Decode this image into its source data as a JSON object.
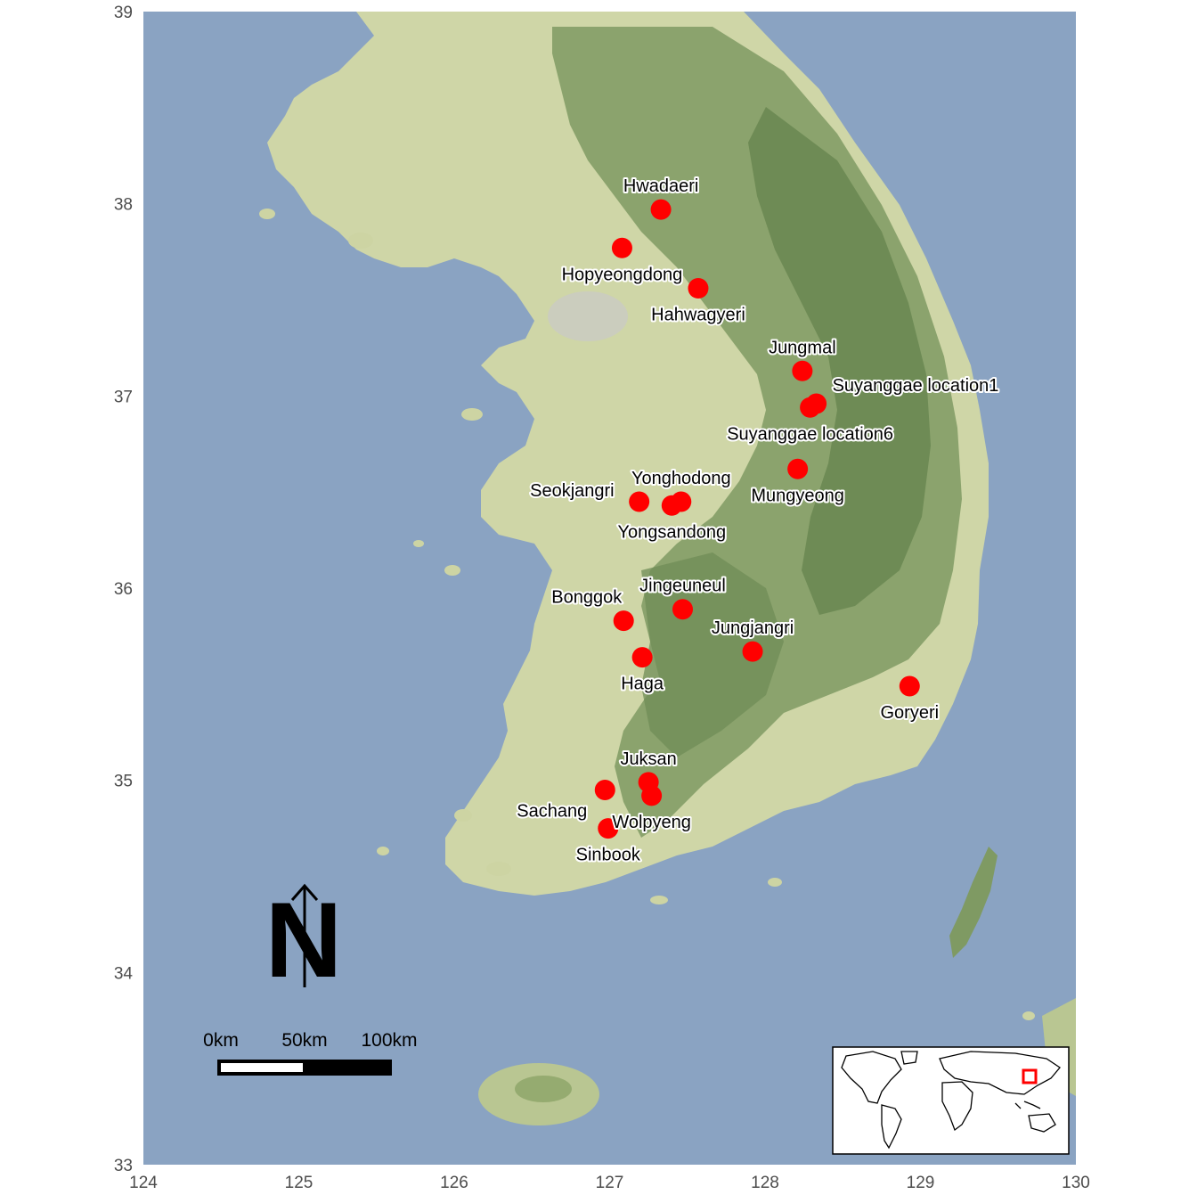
{
  "map": {
    "type": "scatter",
    "xlim": [
      124,
      130
    ],
    "ylim": [
      33,
      39
    ],
    "x_ticks": [
      "124",
      "125",
      "126",
      "127",
      "128",
      "129",
      "130"
    ],
    "y_ticks": [
      "33",
      "34",
      "35",
      "36",
      "37",
      "38",
      "39"
    ],
    "basemap": "terrain map of the Korean peninsula",
    "point_color": "#ff0000",
    "sea_color": "#8aa3c2",
    "land_color": "#cfd6a7",
    "sites": [
      {
        "name": "Hwadaeri",
        "lon": 127.33,
        "lat": 37.97,
        "label_pos": "above"
      },
      {
        "name": "Hopyeongdong",
        "lon": 127.08,
        "lat": 37.77,
        "label_pos": "below"
      },
      {
        "name": "Hahwagyeri",
        "lon": 127.57,
        "lat": 37.56,
        "label_pos": "below"
      },
      {
        "name": "Jungmal",
        "lon": 128.24,
        "lat": 37.13,
        "label_pos": "above"
      },
      {
        "name": "Suyanggae location1",
        "lon": 128.33,
        "lat": 36.96,
        "label_pos": "above-right"
      },
      {
        "name": "Suyanggae location6",
        "lon": 128.29,
        "lat": 36.94,
        "label_pos": "below"
      },
      {
        "name": "Mungyeong",
        "lon": 128.21,
        "lat": 36.62,
        "label_pos": "below"
      },
      {
        "name": "Yonghodong",
        "lon": 127.46,
        "lat": 36.45,
        "label_pos": "above"
      },
      {
        "name": "Seokjangri",
        "lon": 127.19,
        "lat": 36.45,
        "label_pos": "left"
      },
      {
        "name": "Yongsandong",
        "lon": 127.4,
        "lat": 36.43,
        "label_pos": "below"
      },
      {
        "name": "Jingeuneul",
        "lon": 127.47,
        "lat": 35.89,
        "label_pos": "above"
      },
      {
        "name": "Bonggok",
        "lon": 127.09,
        "lat": 35.83,
        "label_pos": "above-left"
      },
      {
        "name": "Jungjangri",
        "lon": 127.92,
        "lat": 35.67,
        "label_pos": "above"
      },
      {
        "name": "Haga",
        "lon": 127.21,
        "lat": 35.64,
        "label_pos": "below"
      },
      {
        "name": "Goryeri",
        "lon": 128.93,
        "lat": 35.49,
        "label_pos": "below"
      },
      {
        "name": "Juksan",
        "lon": 127.25,
        "lat": 34.99,
        "label_pos": "above"
      },
      {
        "name": "Sachang",
        "lon": 126.97,
        "lat": 34.95,
        "label_pos": "below-left"
      },
      {
        "name": "Wolpyeng",
        "lon": 127.27,
        "lat": 34.92,
        "label_pos": "below"
      },
      {
        "name": "Sinbook",
        "lon": 126.99,
        "lat": 34.75,
        "label_pos": "below"
      }
    ],
    "north_arrow": {
      "label": "N"
    },
    "scale_bar": {
      "labels": [
        "0km",
        "50km",
        "100km"
      ]
    },
    "inset": {
      "description": "world map with a red box marking Korea",
      "box_color": "#ff0000"
    }
  }
}
